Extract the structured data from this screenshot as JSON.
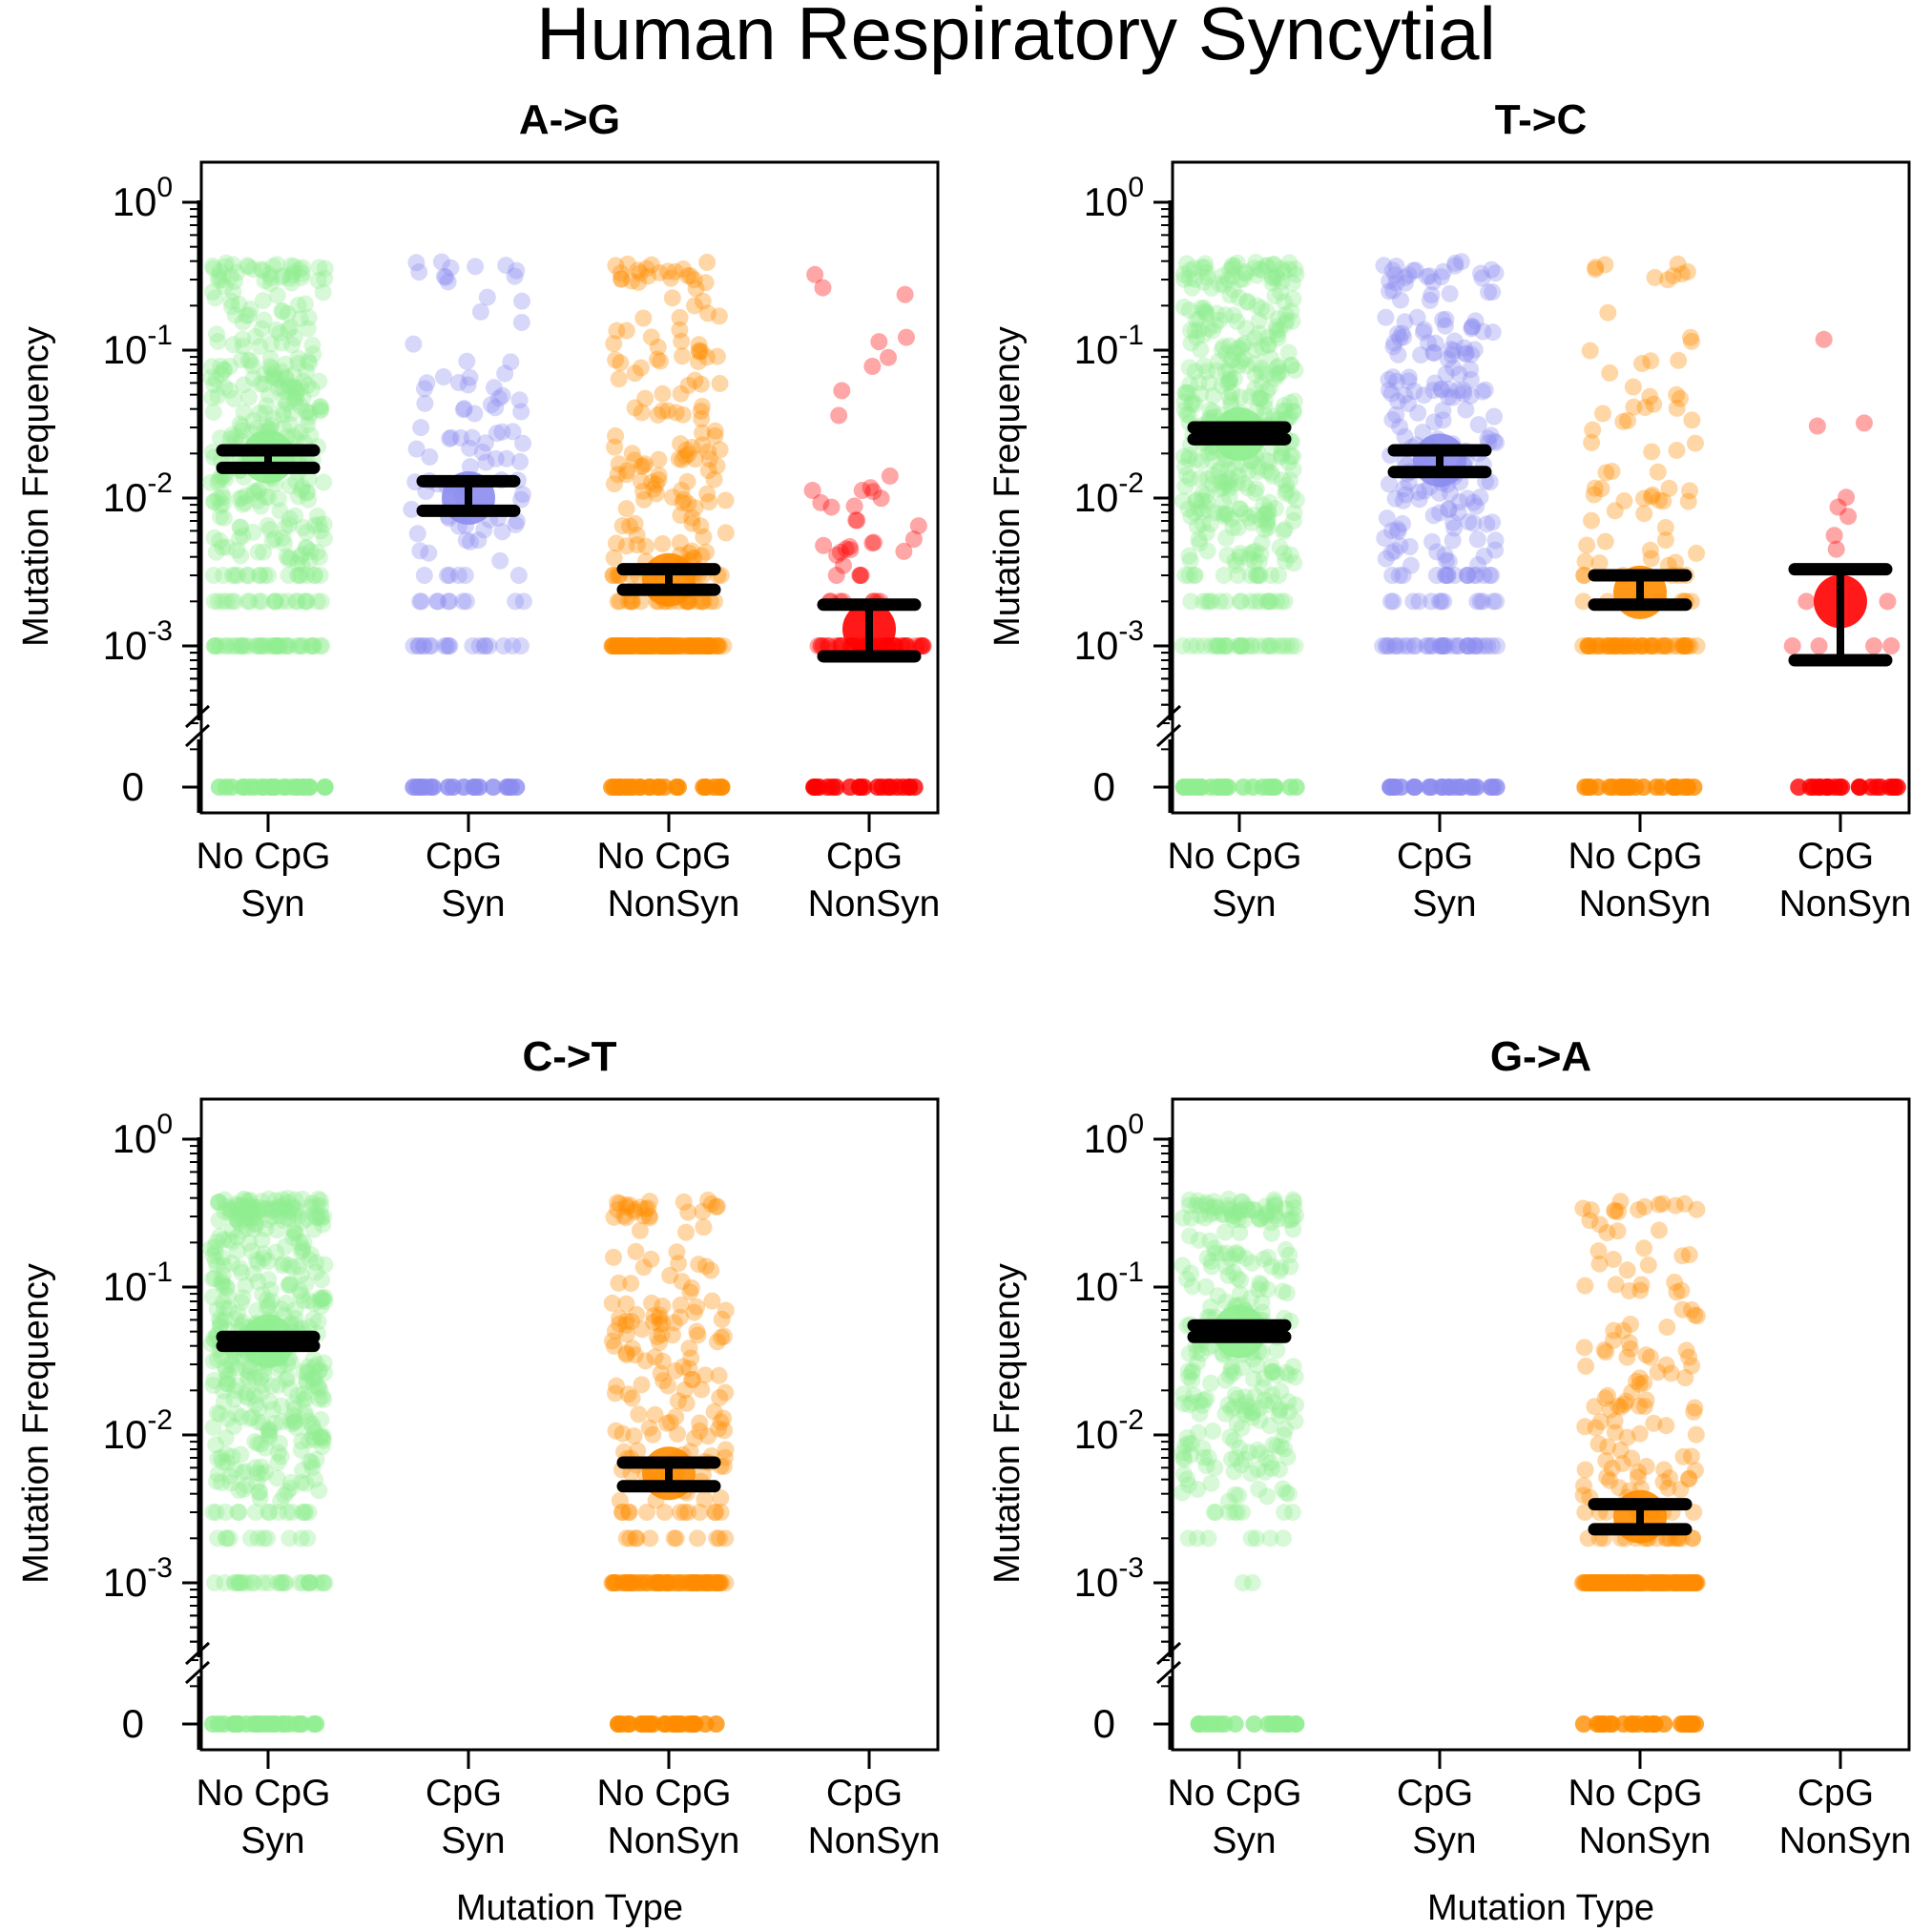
{
  "title": "Human Respiratory Syncytial",
  "colors": {
    "no_cpg_syn": "#90EE90",
    "cpg_syn": "#8C8CF0",
    "no_cpg_nonsyn": "#FF8C00",
    "cpg_nonsyn": "#FF0000",
    "error_bar": "#000000",
    "axis": "#000000"
  },
  "y_axis": {
    "label": "Mutation Frequency",
    "tick_labels": [
      {
        "base": "10",
        "exp": "0"
      },
      {
        "base": "10",
        "exp": "-1"
      },
      {
        "base": "10",
        "exp": "-2"
      },
      {
        "base": "10",
        "exp": "-3"
      }
    ],
    "zero_label": "0",
    "scale": "log10 with axis break at zero",
    "range": [
      0.0005,
      1
    ]
  },
  "x_axis": {
    "label": "Mutation Type",
    "categories": [
      {
        "line1": "No CpG",
        "line2": "Syn"
      },
      {
        "line1": "CpG",
        "line2": "Syn"
      },
      {
        "line1": "No CpG",
        "line2": "NonSyn"
      },
      {
        "line1": "CpG",
        "line2": "NonSyn"
      }
    ]
  },
  "chart_data": [
    {
      "type": "scatter",
      "title": "A->G",
      "categories": [
        "No CpG Syn",
        "CpG Syn",
        "No CpG NonSyn",
        "CpG NonSyn"
      ],
      "series": [
        {
          "name": "No CpG Syn",
          "mean": 0.019,
          "ci": [
            0.016,
            0.021
          ],
          "n_points": 400,
          "zero_count": 25,
          "spread": 0.9
        },
        {
          "name": "CpG Syn",
          "mean": 0.01,
          "ci": [
            0.0082,
            0.013
          ],
          "n_points": 120,
          "zero_count": 18,
          "spread": 0.85
        },
        {
          "name": "No CpG NonSyn",
          "mean": 0.0028,
          "ci": [
            0.0024,
            0.0033
          ],
          "n_points": 320,
          "zero_count": 25,
          "spread": 1.3
        },
        {
          "name": "CpG NonSyn",
          "mean": 0.0013,
          "ci": [
            0.00085,
            0.0019
          ],
          "n_points": 90,
          "zero_count": 20,
          "spread": 1.1
        }
      ]
    },
    {
      "type": "scatter",
      "title": "T->C",
      "categories": [
        "No CpG Syn",
        "CpG Syn",
        "No CpG NonSyn",
        "CpG NonSyn"
      ],
      "series": [
        {
          "name": "No CpG Syn",
          "mean": 0.027,
          "ci": [
            0.025,
            0.03
          ],
          "n_points": 450,
          "zero_count": 25,
          "spread": 0.9
        },
        {
          "name": "CpG Syn",
          "mean": 0.018,
          "ci": [
            0.015,
            0.021
          ],
          "n_points": 260,
          "zero_count": 22,
          "spread": 0.95
        },
        {
          "name": "No CpG NonSyn",
          "mean": 0.0023,
          "ci": [
            0.0019,
            0.003
          ],
          "n_points": 140,
          "zero_count": 25,
          "spread": 1.3
        },
        {
          "name": "CpG NonSyn",
          "mean": 0.002,
          "ci": [
            0.0008,
            0.0033
          ],
          "n_points": 14,
          "zero_count": 20,
          "spread": 1.0
        }
      ]
    },
    {
      "type": "scatter",
      "title": "C->T",
      "categories": [
        "No CpG Syn",
        "CpG Syn",
        "No CpG NonSyn",
        "CpG NonSyn"
      ],
      "series": [
        {
          "name": "No CpG Syn",
          "mean": 0.043,
          "ci": [
            0.04,
            0.046
          ],
          "n_points": 500,
          "zero_count": 25,
          "spread": 0.85
        },
        {
          "name": "CpG Syn",
          "mean": null,
          "ci": null,
          "n_points": 0,
          "zero_count": 0,
          "spread": 0
        },
        {
          "name": "No CpG NonSyn",
          "mean": 0.0055,
          "ci": [
            0.0045,
            0.0065
          ],
          "n_points": 280,
          "zero_count": 25,
          "spread": 1.2
        },
        {
          "name": "CpG NonSyn",
          "mean": null,
          "ci": null,
          "n_points": 0,
          "zero_count": 0,
          "spread": 0
        }
      ]
    },
    {
      "type": "scatter",
      "title": "G->A",
      "categories": [
        "No CpG Syn",
        "CpG Syn",
        "No CpG NonSyn",
        "CpG NonSyn"
      ],
      "series": [
        {
          "name": "No CpG Syn",
          "mean": 0.05,
          "ci": [
            0.046,
            0.055
          ],
          "n_points": 300,
          "zero_count": 20,
          "spread": 0.85
        },
        {
          "name": "CpG Syn",
          "mean": null,
          "ci": null,
          "n_points": 0,
          "zero_count": 0,
          "spread": 0
        },
        {
          "name": "No CpG NonSyn",
          "mean": 0.0028,
          "ci": [
            0.0023,
            0.0034
          ],
          "n_points": 300,
          "zero_count": 25,
          "spread": 1.3
        },
        {
          "name": "CpG NonSyn",
          "mean": null,
          "ci": null,
          "n_points": 0,
          "zero_count": 0,
          "spread": 0
        }
      ]
    }
  ]
}
